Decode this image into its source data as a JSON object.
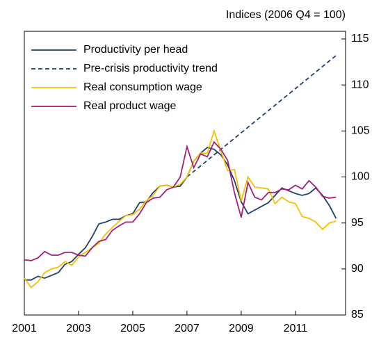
{
  "chart_data": {
    "type": "line",
    "title": "Indices (2006 Q4 = 100)",
    "x": [
      2001,
      2001.25,
      2001.5,
      2001.75,
      2002,
      2002.25,
      2002.5,
      2002.75,
      2003,
      2003.25,
      2003.5,
      2003.75,
      2004,
      2004.25,
      2004.5,
      2004.75,
      2005,
      2005.25,
      2005.5,
      2005.75,
      2006,
      2006.25,
      2006.5,
      2006.75,
      2007,
      2007.25,
      2007.5,
      2007.75,
      2008,
      2008.25,
      2008.5,
      2008.75,
      2009,
      2009.25,
      2009.5,
      2009.75,
      2010,
      2010.25,
      2010.5,
      2010.75,
      2011,
      2011.25,
      2011.5,
      2011.75,
      2012,
      2012.25,
      2012.5
    ],
    "series": [
      {
        "name": "Productivity per head",
        "color": "#1f3f6e",
        "style": "solid",
        "values": [
          88.8,
          88.8,
          89.2,
          89.0,
          89.3,
          89.6,
          90.5,
          90.8,
          91.6,
          92.3,
          93.5,
          94.9,
          95.1,
          95.4,
          95.4,
          95.8,
          96.0,
          97.2,
          97.3,
          98.3,
          99.0,
          99.1,
          98.9,
          99.0,
          100.0,
          101.7,
          102.6,
          103.2,
          103.0,
          102.4,
          101.3,
          99.6,
          97.3,
          96.0,
          96.4,
          96.8,
          97.2,
          98.0,
          98.8,
          98.5,
          98.2,
          98.0,
          98.2,
          98.8,
          98.0,
          96.9,
          95.5
        ]
      },
      {
        "name": "Pre-crisis productivity trend",
        "color": "#1f3f6e",
        "style": "dashed",
        "values": [
          null,
          null,
          null,
          null,
          null,
          null,
          null,
          null,
          null,
          null,
          null,
          null,
          null,
          null,
          null,
          null,
          null,
          null,
          null,
          null,
          null,
          null,
          null,
          null,
          100.0,
          100.6,
          101.2,
          101.8,
          102.4,
          103.0,
          103.6,
          104.2,
          104.8,
          105.4,
          106.0,
          106.6,
          107.2,
          107.8,
          108.4,
          109.0,
          109.6,
          110.2,
          110.8,
          111.4,
          112.0,
          112.6,
          113.2
        ]
      },
      {
        "name": "Real consumption wage",
        "color": "#f5c000",
        "style": "solid",
        "values": [
          89.0,
          88.0,
          88.6,
          89.6,
          90.0,
          90.2,
          90.8,
          90.4,
          91.3,
          91.8,
          92.3,
          92.8,
          93.8,
          94.5,
          95.2,
          95.8,
          95.9,
          96.5,
          97.4,
          98.0,
          99.0,
          99.1,
          98.9,
          99.2,
          100.0,
          101.7,
          102.6,
          102.6,
          105.0,
          102.8,
          100.7,
          100.8,
          97.4,
          100.0,
          98.9,
          98.8,
          98.7,
          97.1,
          97.8,
          97.3,
          97.1,
          95.7,
          95.5,
          95.1,
          94.3,
          95.0,
          95.2
        ]
      },
      {
        "name": "Real product wage",
        "color": "#a0207a",
        "style": "solid",
        "values": [
          91.0,
          90.9,
          91.2,
          91.9,
          91.5,
          91.5,
          91.8,
          91.8,
          91.5,
          91.4,
          92.3,
          93.0,
          93.2,
          94.2,
          94.7,
          95.1,
          95.1,
          96.0,
          97.2,
          97.7,
          97.8,
          98.6,
          98.9,
          100.0,
          103.3,
          101.0,
          102.5,
          102.2,
          103.8,
          103.0,
          101.8,
          98.3,
          95.6,
          99.4,
          97.8,
          97.5,
          98.3,
          98.3,
          98.7,
          98.6,
          99.1,
          98.7,
          99.6,
          98.9,
          97.9,
          97.7,
          97.8
        ]
      }
    ],
    "xlim": [
      2001,
      2012.85
    ],
    "xticks": [
      2001,
      2003,
      2005,
      2007,
      2009,
      2011
    ],
    "ylim": [
      85,
      115
    ],
    "yticks": [
      85,
      90,
      95,
      100,
      105,
      110,
      115
    ],
    "legend": "upper left"
  }
}
